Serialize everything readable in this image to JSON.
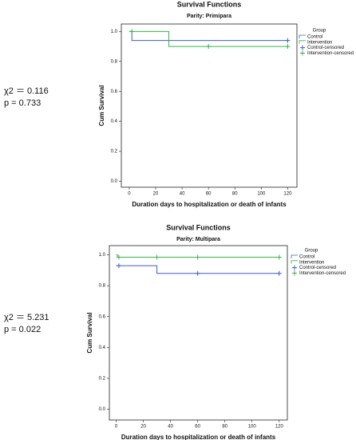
{
  "chart_data": [
    {
      "type": "line",
      "title": "Survival Functions",
      "subtitle": "Parity: Primipara",
      "x_label": "Duration days to hospitalization or death of infants",
      "y_label": "Cum Survival",
      "annotations": [
        "χ2 ＝ 0.116",
        "p = 0.733"
      ],
      "xlim": [
        -6,
        127
      ],
      "xticks": [
        0,
        20,
        40,
        60,
        80,
        100,
        120
      ],
      "ylim": [
        -0.04,
        1.05
      ],
      "yticks": [
        {
          "value": 0,
          "label": "0.0"
        },
        {
          "value": 0.2,
          "label": "0.2"
        },
        {
          "value": 0.4,
          "label": "0.4"
        },
        {
          "value": 0.6,
          "label": "0.6"
        },
        {
          "value": 0.8,
          "label": "0.8"
        },
        {
          "value": 1,
          "label": "1.0"
        }
      ],
      "legend_title": "Group",
      "series": [
        {
          "name": "Control",
          "color": "#3d5fc4",
          "drawstyle": "steps-post",
          "x": [
            0,
            2,
            120
          ],
          "values": [
            1,
            0.94,
            0.94
          ]
        },
        {
          "name": "Intervention",
          "color": "#38b24a",
          "drawstyle": "steps-post",
          "x": [
            0,
            30,
            120
          ],
          "values": [
            1,
            0.9,
            0.9
          ]
        },
        {
          "name": "Control-censored",
          "color": "#3d5fc4",
          "marker": "+",
          "x": [
            120
          ],
          "values": [
            0.94
          ]
        },
        {
          "name": "Intervention-censored",
          "color": "#38b24a",
          "marker": "+",
          "x": [
            2,
            60,
            120
          ],
          "values": [
            1,
            0.9,
            0.9
          ]
        }
      ]
    },
    {
      "type": "line",
      "title": "Survival Functions",
      "subtitle": "Parity: Multipara",
      "x_label": "Duration days to hospitalization or death of infants",
      "y_label": "Cum Survival",
      "annotations": [
        "χ2 ＝ 5.231",
        "p = 0.022"
      ],
      "xlim": [
        -5,
        126
      ],
      "xticks": [
        0,
        20,
        40,
        60,
        80,
        100,
        120
      ],
      "ylim": [
        -0.07,
        1.06
      ],
      "yticks": [
        {
          "value": 0,
          "label": "0.0"
        },
        {
          "value": 0.2,
          "label": "0.2"
        },
        {
          "value": 0.4,
          "label": "0.4"
        },
        {
          "value": 0.6,
          "label": "0.6"
        },
        {
          "value": 0.8,
          "label": "0.8"
        },
        {
          "value": 1,
          "label": "1.0"
        }
      ],
      "legend_title": "Group",
      "series": [
        {
          "name": "Control",
          "color": "#3d5fc4",
          "drawstyle": "steps-post",
          "x": [
            0,
            30,
            120
          ],
          "values": [
            0.93,
            0.88,
            0.88
          ]
        },
        {
          "name": "Intervention",
          "color": "#38b24a",
          "drawstyle": "steps-post",
          "x": [
            0,
            1,
            120
          ],
          "values": [
            1,
            0.985,
            0.985
          ]
        },
        {
          "name": "Control-censored",
          "color": "#3d5fc4",
          "marker": "+",
          "x": [
            2,
            60,
            120
          ],
          "values": [
            0.93,
            0.88,
            0.88
          ]
        },
        {
          "name": "Intervention-censored",
          "color": "#38b24a",
          "marker": "+",
          "x": [
            2,
            30,
            60,
            120
          ],
          "values": [
            0.985,
            0.985,
            0.985,
            0.985
          ]
        }
      ]
    }
  ]
}
